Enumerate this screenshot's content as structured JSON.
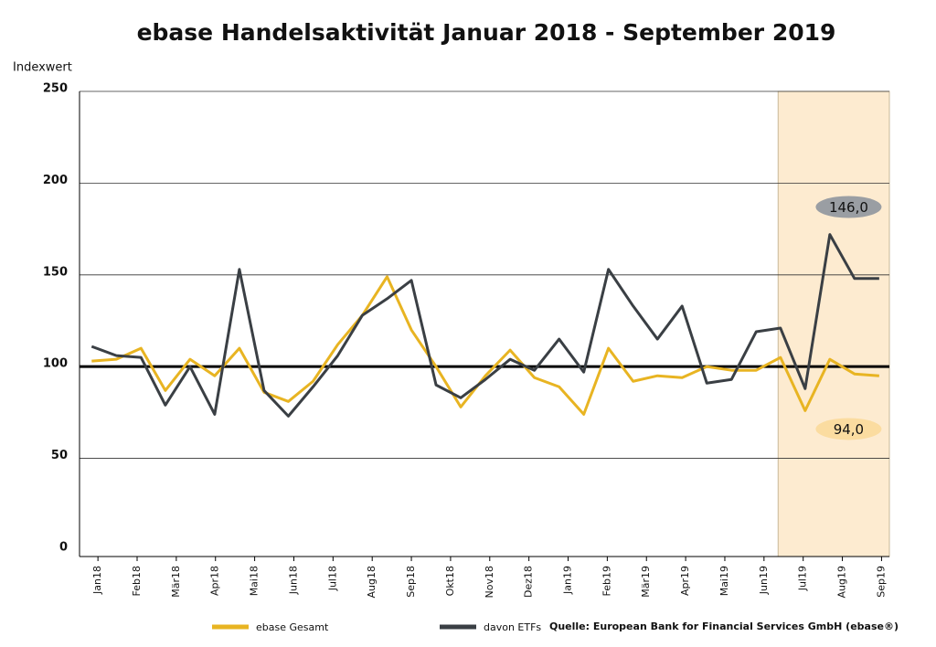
{
  "chart_data": {
    "type": "line",
    "title": "ebase Handelsaktivität Januar 2018 - September 2019",
    "y_label": "Indexwert",
    "source": "Quelle: European Bank for Financial Services GmbH (ebase®)",
    "x": [
      -0.16,
      0.47,
      1.1,
      1.72,
      2.35,
      2.98,
      3.61,
      4.24,
      4.86,
      5.49,
      6.12,
      6.75,
      7.38,
      8.0,
      8.63,
      9.26,
      9.89,
      10.52,
      11.14,
      11.77,
      12.4,
      13.03,
      13.66,
      14.28,
      14.91,
      15.54,
      16.17,
      16.8,
      17.42,
      18.05,
      18.68,
      19.31,
      19.94
    ],
    "series": [
      {
        "name": "ebase Gesamt",
        "color": "#e8b422",
        "values": [
          103,
          104,
          110,
          87,
          104,
          95,
          110,
          86,
          81,
          92,
          112,
          128,
          149,
          120,
          100,
          78,
          95,
          109,
          94,
          89,
          74,
          110,
          92,
          95,
          94,
          100,
          98,
          98,
          105,
          76,
          104,
          96,
          95
        ]
      },
      {
        "name": "davon ETFs",
        "color": "#3a3f44",
        "values": [
          111,
          106,
          105,
          79,
          100,
          74,
          153,
          87,
          73,
          89,
          106,
          128,
          137,
          147,
          90,
          83,
          93,
          104,
          98,
          115,
          97,
          153,
          133,
          115,
          133,
          91,
          93,
          119,
          121,
          88,
          172,
          148,
          148
        ]
      }
    ],
    "xlim": [
      -0.47,
      20.2
    ],
    "xticks": [
      {
        "value": 0,
        "label": "Jan18"
      },
      {
        "value": 1,
        "label": "Feb18"
      },
      {
        "value": 2,
        "label": "Mär18"
      },
      {
        "value": 3,
        "label": "Apr18"
      },
      {
        "value": 4,
        "label": "Mai18"
      },
      {
        "value": 5,
        "label": "Jun18"
      },
      {
        "value": 6,
        "label": "Jul18"
      },
      {
        "value": 7,
        "label": "Aug18"
      },
      {
        "value": 8,
        "label": "Sep18"
      },
      {
        "value": 9,
        "label": "Okt18"
      },
      {
        "value": 10,
        "label": "Nov18"
      },
      {
        "value": 11,
        "label": "Dez18"
      },
      {
        "value": 12,
        "label": "Jan19"
      },
      {
        "value": 13,
        "label": "Feb19"
      },
      {
        "value": 14,
        "label": "Mär19"
      },
      {
        "value": 15,
        "label": "Apr19"
      },
      {
        "value": 16,
        "label": "Mai19"
      },
      {
        "value": 17,
        "label": "Jun19"
      },
      {
        "value": 18,
        "label": "Jul19"
      },
      {
        "value": 19,
        "label": "Aug19"
      },
      {
        "value": 20,
        "label": "Sep19"
      }
    ],
    "ylim": [
      -3.5,
      250
    ],
    "yticks": [
      0,
      50,
      100,
      150,
      200,
      250
    ],
    "grid": true,
    "reference_line": 100,
    "shaded_xrange": [
      17.36,
      20.2
    ],
    "shade_color": "#fdebd0",
    "annotations": [
      {
        "text": "146,0",
        "x": 19.16,
        "y": 187,
        "color": "#9a9ea3"
      },
      {
        "text": "94,0",
        "x": 19.16,
        "y": 66,
        "color": "#fbdca0"
      }
    ]
  }
}
